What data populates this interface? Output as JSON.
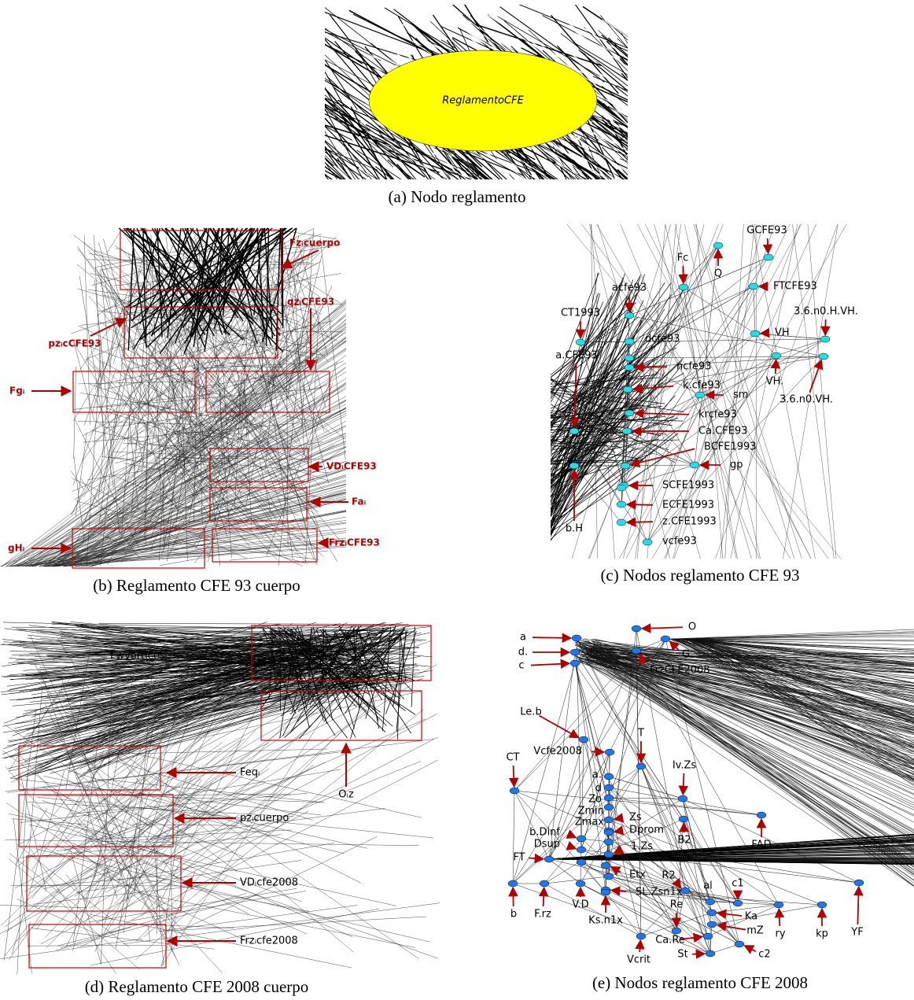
{
  "panel_a": {
    "node_label": "ReglamentoCFE",
    "caption": "(a) Nodo reglamento"
  },
  "panel_b": {
    "labels": [
      "Fzᵢcuerpo",
      "qzᵢCFE93",
      "pzᵢcCFE93",
      "Fgᵢ",
      "VDᵢCFE93",
      "Faᵢ",
      "gHᵢ",
      "FrzᵢCFE93"
    ],
    "caption": "(b) Reglamento CFE 93 cuerpo"
  },
  "panel_c": {
    "labels": [
      "GCFE93",
      "Q",
      "Fc",
      "FTCFE93",
      "acfe93",
      "CT1993",
      "3.6.n0.H.VH.",
      "VH",
      "dcfe93",
      "a.CFE93",
      "VH.",
      "ncfe93",
      "k.cfe93",
      "sm",
      "3.6.n0.VH.",
      "krcfe93",
      "Ca.CFE93",
      "BCFE1993",
      "gp",
      "SCFE1993",
      "ECFE1993",
      "z.CFE1993",
      "vcfe93",
      "b.H"
    ],
    "caption": "(c) Nodos reglamento CFE 93"
  },
  "panel_d": {
    "labels": [
      "Fwvorticesᵢ",
      "Feqᵢ",
      "Oᵢz",
      "pzᵢcuerpo",
      "VDᵢcfe2008",
      "Frzᵢcfe2008"
    ],
    "caption": "(d) Reglamento CFE 2008 cuerpo"
  },
  "panel_e": {
    "labels": [
      "a",
      "d.",
      "c",
      "O",
      "G",
      "FrzCFE2008",
      "Le.b",
      "T",
      "Vcfe2008",
      "CT",
      "Iv.Zs",
      "a.",
      "d",
      "Zo",
      "Zmin",
      "Zs",
      "Zmax",
      "Dprom",
      "b.Dinf",
      "Dsup",
      "B2",
      "FAD",
      "1.Zs",
      "FT",
      "Etx",
      "R2",
      "SL.Zsn1x",
      "al",
      "c1",
      "b",
      "F.rz",
      "V.D",
      "Ks.n1x",
      "Re",
      "Ka",
      "mZ",
      "ry",
      "kp",
      "YF",
      "Ca.Re",
      "St",
      "Vcrit",
      "c2"
    ],
    "caption": "(e) Nodos reglamento CFE 2008"
  }
}
